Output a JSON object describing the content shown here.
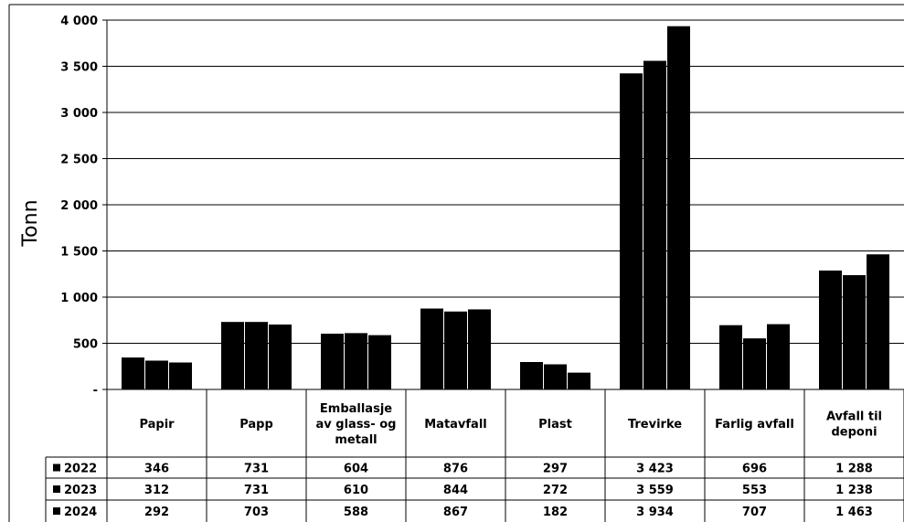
{
  "chart_data": {
    "type": "bar",
    "ylabel": "Tonn",
    "ylim": [
      0,
      4000
    ],
    "yticks": [
      0,
      500,
      1000,
      1500,
      2000,
      2500,
      3000,
      3500,
      4000
    ],
    "ytick_labels": [
      "-",
      "500",
      "1 000",
      "1 500",
      "2 000",
      "2 500",
      "3 000",
      "3 500",
      "4 000"
    ],
    "categories": [
      [
        "Papir"
      ],
      [
        "Papp"
      ],
      [
        "Emballasje",
        "av glass- og",
        "metall"
      ],
      [
        "Matavfall"
      ],
      [
        "Plast"
      ],
      [
        "Trevirke"
      ],
      [
        "Farlig avfall"
      ],
      [
        "Avfall til",
        "deponi"
      ]
    ],
    "series": [
      {
        "name": "2022",
        "values": [
          346,
          731,
          604,
          876,
          297,
          3423,
          696,
          1288
        ],
        "labels": [
          "346",
          "731",
          "604",
          "876",
          "297",
          "3 423",
          "696",
          "1 288"
        ]
      },
      {
        "name": "2023",
        "values": [
          312,
          731,
          610,
          844,
          272,
          3559,
          553,
          1238
        ],
        "labels": [
          "312",
          "731",
          "610",
          "844",
          "272",
          "3 559",
          "553",
          "1 238"
        ]
      },
      {
        "name": "2024",
        "values": [
          292,
          703,
          588,
          867,
          182,
          3934,
          707,
          1463
        ],
        "labels": [
          "292",
          "703",
          "588",
          "867",
          "182",
          "3 934",
          "707",
          "1 463"
        ]
      }
    ],
    "legend": "data-table",
    "grid": true,
    "bar_color": "#000000",
    "grid_color": "#000000"
  }
}
